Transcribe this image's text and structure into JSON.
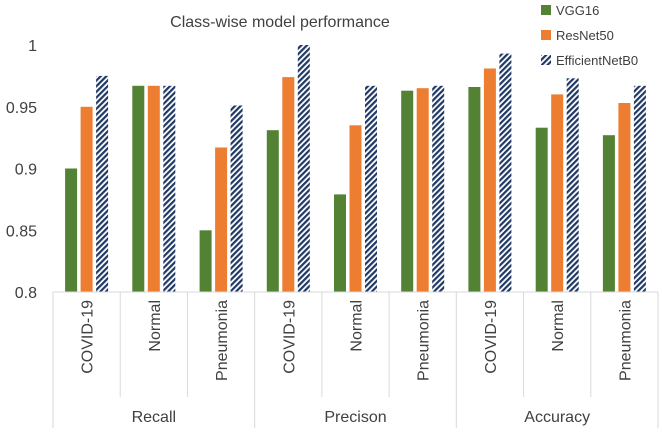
{
  "chart_data": {
    "type": "bar",
    "title": "Class-wise model performance",
    "xlabel": "",
    "ylabel": "",
    "ylim": [
      0.8,
      1.0
    ],
    "yticks": [
      0.8,
      0.85,
      0.9,
      0.95,
      1
    ],
    "ytick_labels": [
      "0.8",
      "0.85",
      "0.9",
      "0.95",
      "1"
    ],
    "grid": false,
    "legend_position": "top-right",
    "groups": [
      {
        "label": "Recall",
        "categories": [
          "COVID-19",
          "Normal",
          "Pneumonia"
        ]
      },
      {
        "label": "Precison",
        "categories": [
          "COVID-19",
          "Normal",
          "Pneumonia"
        ]
      },
      {
        "label": "Accuracy",
        "categories": [
          "COVID-19",
          "Normal",
          "Pneumonia"
        ]
      }
    ],
    "series": [
      {
        "name": "VGG16",
        "color": "#548235",
        "pattern": "solid",
        "values": [
          0.9,
          0.967,
          0.85,
          0.931,
          0.879,
          0.963,
          0.966,
          0.933,
          0.927
        ]
      },
      {
        "name": "ResNet50",
        "color": "#ed7d31",
        "pattern": "solid",
        "values": [
          0.95,
          0.967,
          0.917,
          0.974,
          0.935,
          0.965,
          0.981,
          0.96,
          0.953
        ]
      },
      {
        "name": "EfficientNetB0",
        "color": "#1f3864",
        "pattern": "diagonal-stripes",
        "values": [
          0.975,
          0.967,
          0.951,
          1.0,
          0.967,
          0.967,
          0.993,
          0.973,
          0.967
        ]
      }
    ]
  }
}
